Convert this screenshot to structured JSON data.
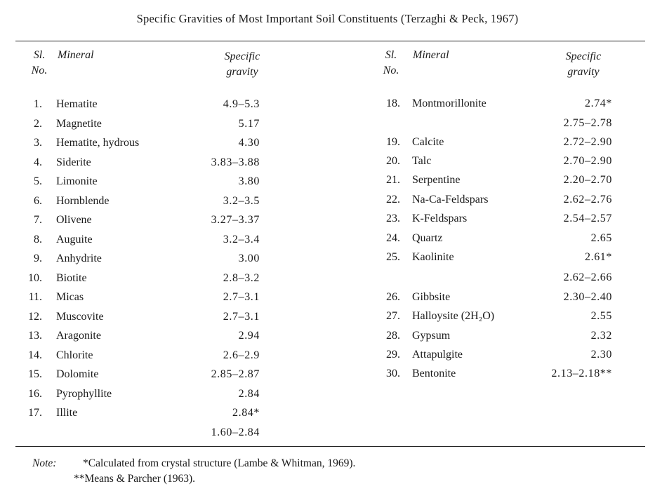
{
  "title": "Specific Gravities of Most Important Soil Constituents (Terzaghi & Peck, 1967)",
  "headers": {
    "sl_line1": "Sl.",
    "sl_line2": "No.",
    "mineral": "Mineral",
    "sg_line1": "Specific",
    "sg_line2": "gravity"
  },
  "left_rows": [
    {
      "no": "1.",
      "mineral": "Hematite",
      "sg": "4.9–5.3"
    },
    {
      "no": "2.",
      "mineral": "Magnetite",
      "sg": "5.17"
    },
    {
      "no": "3.",
      "mineral": "Hematite, hydrous",
      "sg": "4.30"
    },
    {
      "no": "4.",
      "mineral": "Siderite",
      "sg": "3.83–3.88"
    },
    {
      "no": "5.",
      "mineral": "Limonite",
      "sg": "3.80"
    },
    {
      "no": "6.",
      "mineral": "Hornblende",
      "sg": "3.2–3.5"
    },
    {
      "no": "7.",
      "mineral": "Olivene",
      "sg": "3.27–3.37"
    },
    {
      "no": "8.",
      "mineral": "Auguite",
      "sg": "3.2–3.4"
    },
    {
      "no": "9.",
      "mineral": "Anhydrite",
      "sg": "3.00"
    },
    {
      "no": "10.",
      "mineral": "Biotite",
      "sg": "2.8–3.2"
    },
    {
      "no": "11.",
      "mineral": "Micas",
      "sg": "2.7–3.1"
    },
    {
      "no": "12.",
      "mineral": "Muscovite",
      "sg": "2.7–3.1"
    },
    {
      "no": "13.",
      "mineral": "Aragonite",
      "sg": "2.94"
    },
    {
      "no": "14.",
      "mineral": "Chlorite",
      "sg": "2.6–2.9"
    },
    {
      "no": "15.",
      "mineral": "Dolomite",
      "sg": "2.85–2.87"
    },
    {
      "no": "16.",
      "mineral": "Pyrophyllite",
      "sg": "2.84"
    },
    {
      "no": "17.",
      "mineral": "Illite",
      "sg": "2.84*"
    },
    {
      "no": "",
      "mineral": "",
      "sg": "1.60–2.84"
    }
  ],
  "right_rows": [
    {
      "no": "18.",
      "mineral": "Montmorillonite",
      "sg": "2.74*"
    },
    {
      "no": "",
      "mineral": "",
      "sg": "2.75–2.78"
    },
    {
      "no": "19.",
      "mineral": "Calcite",
      "sg": "2.72–2.90"
    },
    {
      "no": "20.",
      "mineral": "Talc",
      "sg": "2.70–2.90"
    },
    {
      "no": "21.",
      "mineral": "Serpentine",
      "sg": "2.20–2.70"
    },
    {
      "no": "22.",
      "mineral": "Na-Ca-Feldspars",
      "sg": "2.62–2.76"
    },
    {
      "no": "23.",
      "mineral": "K-Feldspars",
      "sg": "2.54–2.57"
    },
    {
      "no": "24.",
      "mineral": "Quartz",
      "sg": "2.65"
    },
    {
      "no": "25.",
      "mineral": "Kaolinite",
      "sg": "2.61*"
    },
    {
      "no": "",
      "mineral": "",
      "sg": "2.62–2.66"
    },
    {
      "no": "26.",
      "mineral": "Gibbsite",
      "sg": "2.30–2.40"
    },
    {
      "no": "27.",
      "mineral": "Halloysite (2H₂O)",
      "sg": "2.55"
    },
    {
      "no": "28.",
      "mineral": "Gypsum",
      "sg": "2.32"
    },
    {
      "no": "29.",
      "mineral": "Attapulgite",
      "sg": "2.30"
    },
    {
      "no": "30.",
      "mineral": "Bentonite",
      "sg": "2.13–2.18**"
    }
  ],
  "notes": {
    "label": "Note:",
    "line1": "*Calculated from crystal structure (Lambe & Whitman, 1969).",
    "line2": "**Means & Parcher (1963)."
  }
}
